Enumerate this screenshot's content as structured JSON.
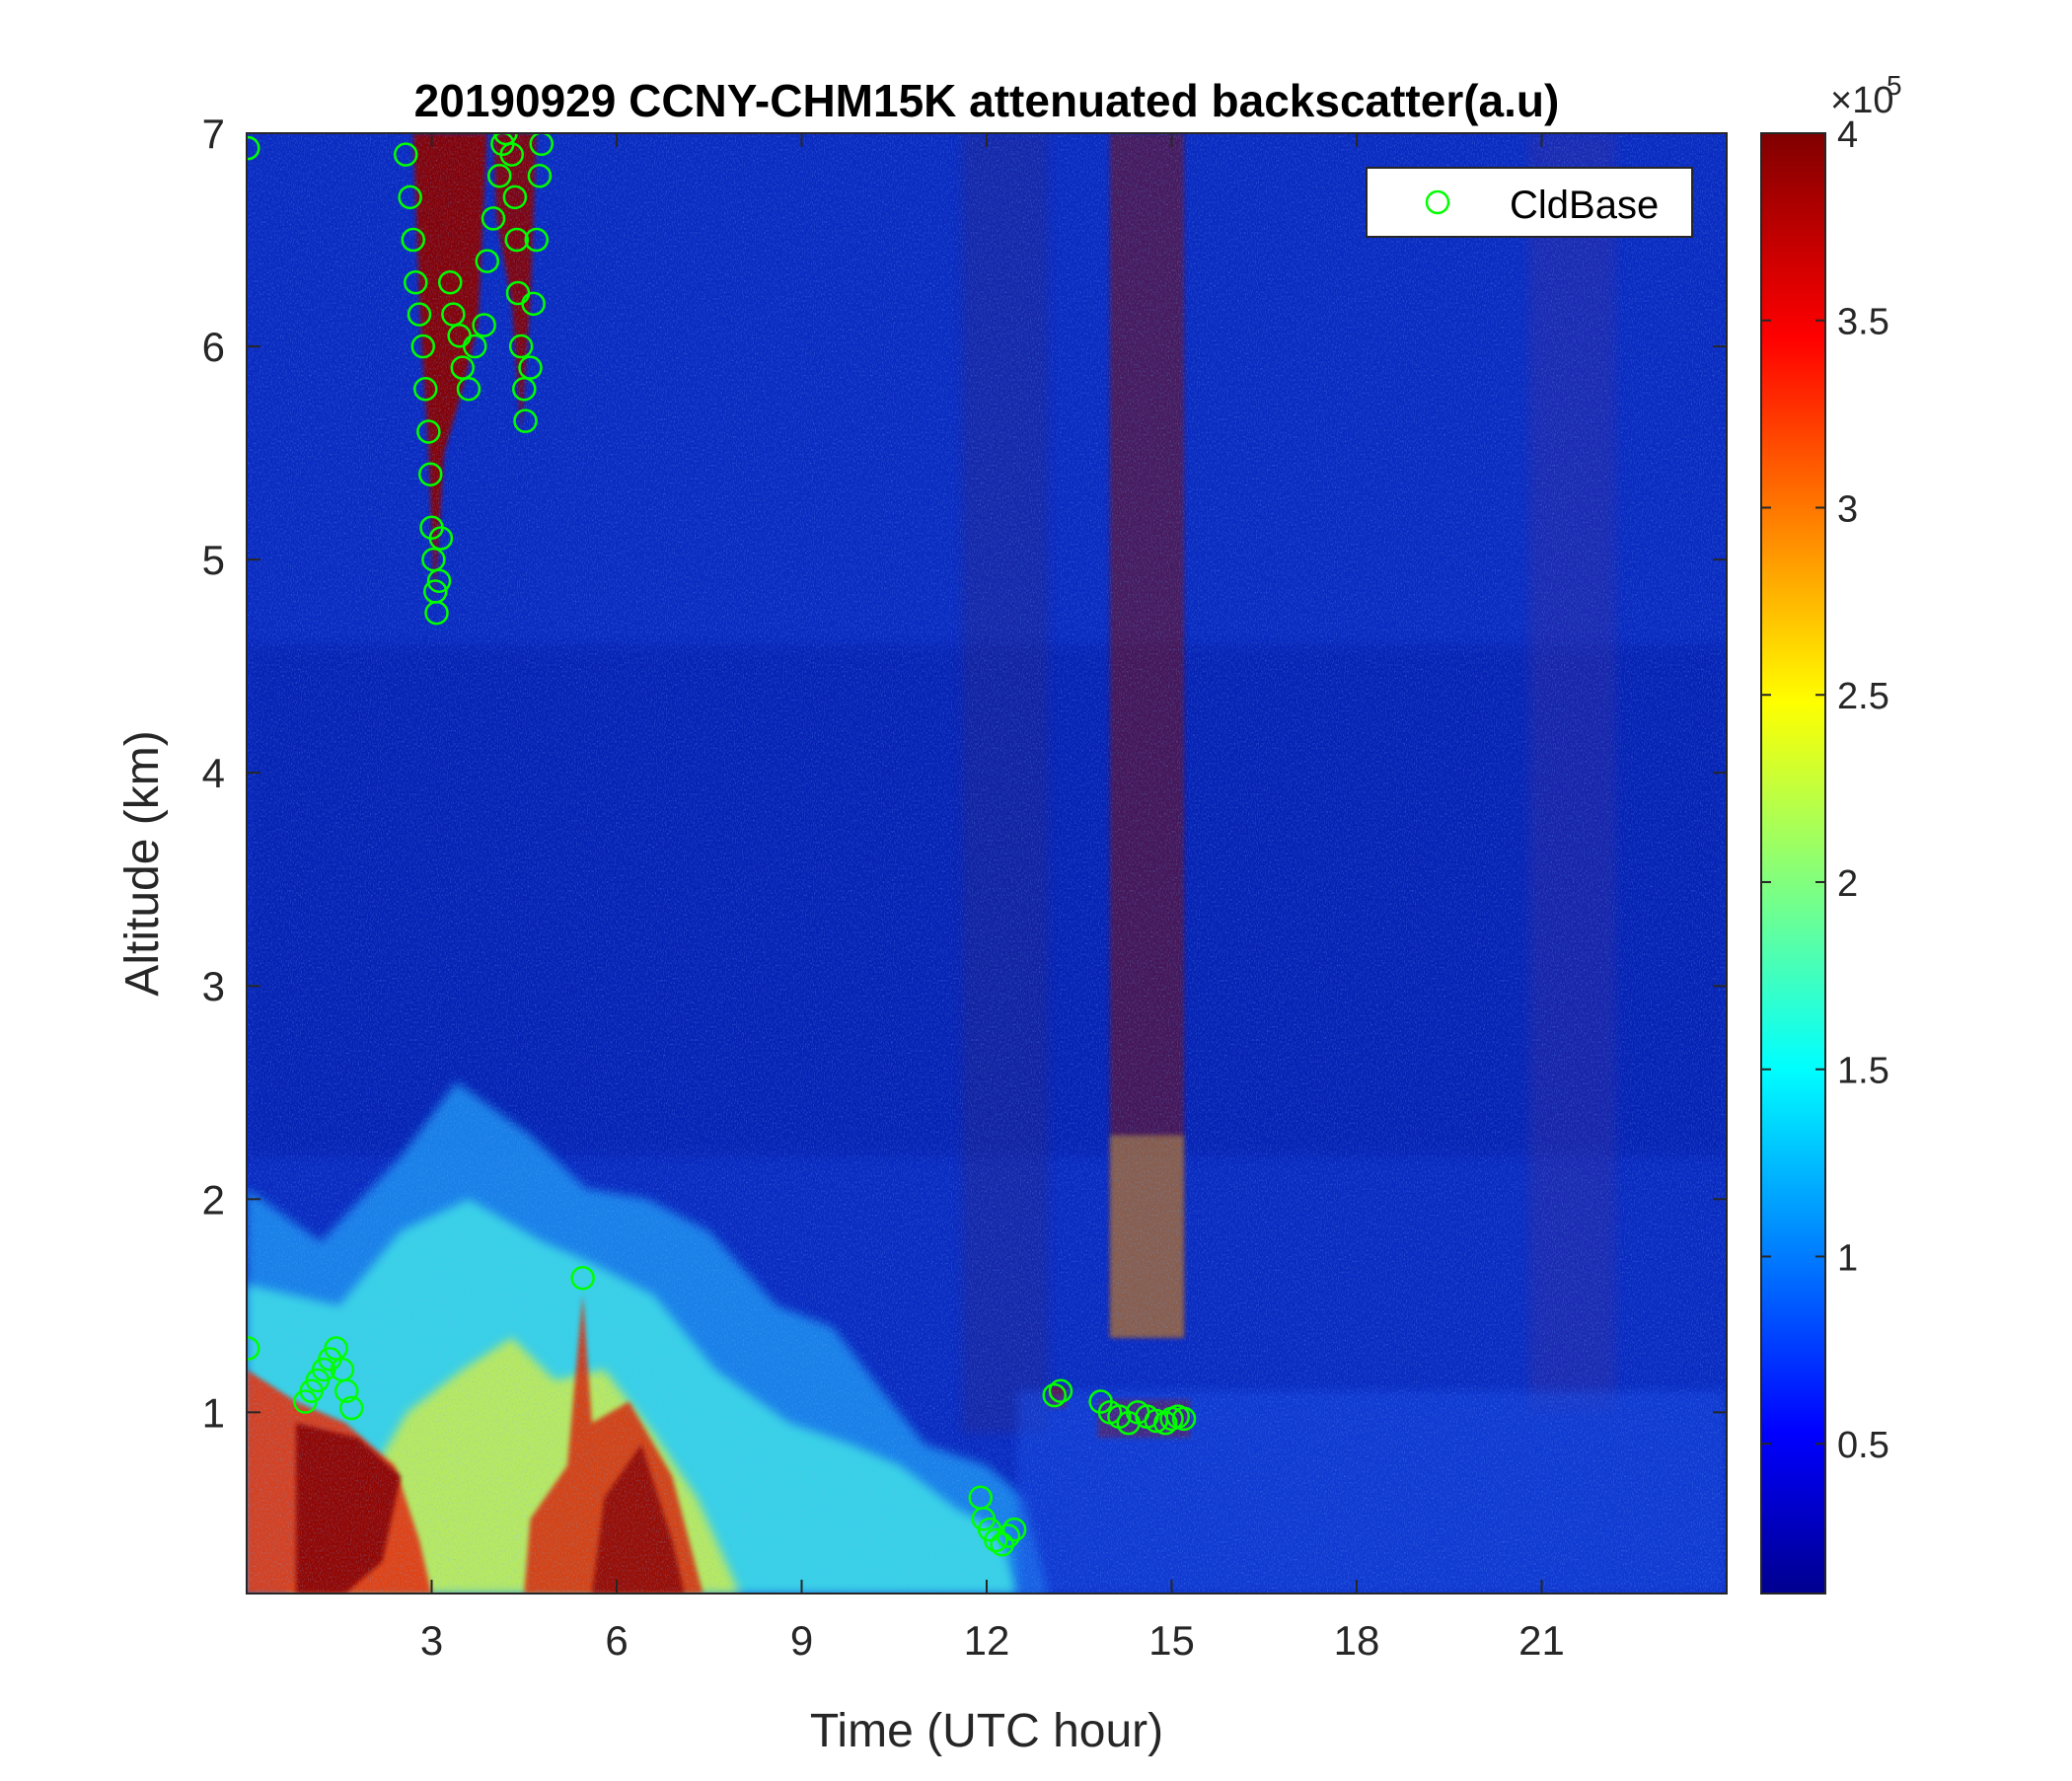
{
  "chart_data": {
    "type": "heatmap",
    "title": "20190929 CCNY-CHM15K attenuated backscatter(a.u)",
    "xlabel": "Time (UTC hour)",
    "ylabel": "Altitude (km)",
    "xlim": [
      0,
      24
    ],
    "ylim": [
      0.15,
      7
    ],
    "x_ticks": [
      3,
      6,
      9,
      12,
      15,
      18,
      21
    ],
    "y_ticks": [
      1,
      2,
      3,
      4,
      5,
      6,
      7
    ],
    "colormap": "jet",
    "colorbar": {
      "range": [
        0.1,
        4
      ],
      "ticks": [
        0.5,
        1,
        1.5,
        2,
        2.5,
        3,
        3.5,
        4
      ],
      "tick_labels": [
        "0.5",
        "1",
        "1.5",
        "2",
        "2.5",
        "3",
        "3.5",
        "4"
      ],
      "exponent_base": "×10",
      "exponent_power": "5"
    },
    "legend": {
      "position": "top-right",
      "entries": [
        {
          "name": "CldBase",
          "marker": "circle",
          "color": "#00ff00"
        }
      ]
    },
    "features": [
      {
        "kind": "boundary_layer_aerosol",
        "t_start": 0,
        "t_end": 11,
        "top_km_start": 1.9,
        "top_km_end": 0.6,
        "peak_value": 4
      },
      {
        "kind": "high_cloud",
        "t_start": 2.4,
        "t_end": 4.8,
        "base_km": 4.7,
        "top_km": 7
      },
      {
        "kind": "precip_column",
        "t_start": 14,
        "t_end": 15.2,
        "base_km": 1.3,
        "top_km": 7
      },
      {
        "kind": "low_cloud",
        "t_start": 13.8,
        "t_end": 15.3,
        "base_km": 0.95
      }
    ],
    "series": [
      {
        "name": "CldBase",
        "points": [
          [
            0.02,
            6.93
          ],
          [
            0.02,
            1.3
          ],
          [
            2.58,
            6.9
          ],
          [
            2.65,
            6.7
          ],
          [
            2.7,
            6.5
          ],
          [
            2.74,
            6.3
          ],
          [
            2.8,
            6.15
          ],
          [
            2.86,
            6.0
          ],
          [
            2.9,
            5.8
          ],
          [
            2.95,
            5.6
          ],
          [
            2.98,
            5.4
          ],
          [
            3.0,
            5.15
          ],
          [
            3.03,
            5.0
          ],
          [
            3.06,
            4.85
          ],
          [
            3.08,
            4.75
          ],
          [
            3.12,
            4.9
          ],
          [
            3.15,
            5.1
          ],
          [
            3.3,
            6.3
          ],
          [
            3.35,
            6.15
          ],
          [
            3.45,
            6.05
          ],
          [
            3.5,
            5.9
          ],
          [
            3.6,
            5.8
          ],
          [
            3.7,
            6.0
          ],
          [
            3.85,
            6.1
          ],
          [
            3.9,
            6.4
          ],
          [
            4.0,
            6.6
          ],
          [
            4.1,
            6.8
          ],
          [
            4.15,
            6.95
          ],
          [
            4.2,
            7.0
          ],
          [
            4.3,
            6.9
          ],
          [
            4.35,
            6.7
          ],
          [
            4.38,
            6.5
          ],
          [
            4.4,
            6.25
          ],
          [
            4.45,
            6.0
          ],
          [
            4.5,
            5.8
          ],
          [
            4.52,
            5.65
          ],
          [
            4.6,
            5.9
          ],
          [
            4.65,
            6.2
          ],
          [
            4.7,
            6.5
          ],
          [
            4.75,
            6.8
          ],
          [
            4.78,
            6.95
          ],
          [
            0.95,
            1.05
          ],
          [
            1.05,
            1.1
          ],
          [
            1.15,
            1.15
          ],
          [
            1.25,
            1.2
          ],
          [
            1.35,
            1.25
          ],
          [
            1.45,
            1.3
          ],
          [
            1.55,
            1.2
          ],
          [
            1.62,
            1.1
          ],
          [
            1.7,
            1.02
          ],
          [
            5.45,
            1.63
          ],
          [
            11.9,
            0.6
          ],
          [
            11.95,
            0.5
          ],
          [
            12.05,
            0.45
          ],
          [
            12.15,
            0.4
          ],
          [
            12.25,
            0.38
          ],
          [
            12.35,
            0.42
          ],
          [
            12.45,
            0.45
          ],
          [
            13.1,
            1.08
          ],
          [
            13.2,
            1.1
          ],
          [
            13.85,
            1.05
          ],
          [
            14.0,
            1.0
          ],
          [
            14.15,
            0.98
          ],
          [
            14.3,
            0.95
          ],
          [
            14.45,
            1.0
          ],
          [
            14.6,
            0.98
          ],
          [
            14.75,
            0.96
          ],
          [
            14.9,
            0.95
          ],
          [
            15.0,
            0.97
          ],
          [
            15.1,
            0.98
          ],
          [
            15.2,
            0.97
          ]
        ]
      }
    ]
  }
}
